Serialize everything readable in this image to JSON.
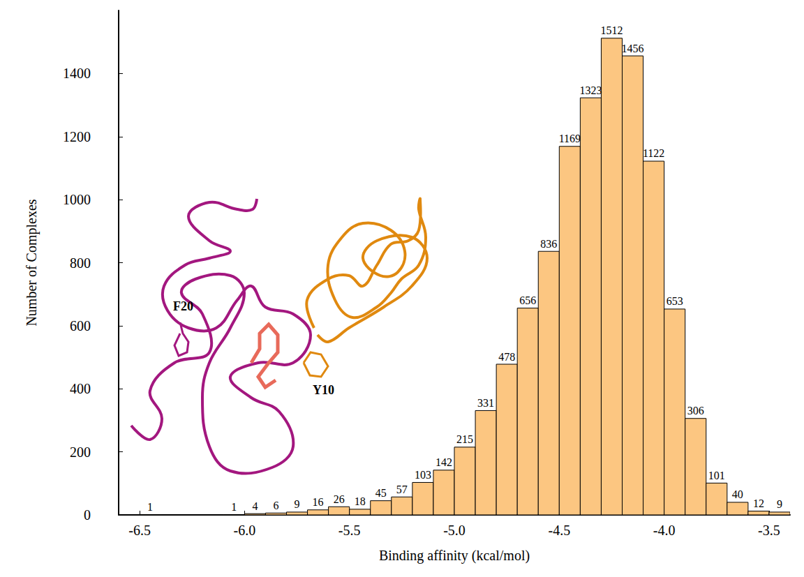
{
  "chart_data": {
    "type": "histogram",
    "x_label": "Binding affinity (kcal/mol)",
    "y_label": "Number of Complexes",
    "bins": [
      -6.5,
      -6.4,
      -6.3,
      -6.2,
      -6.1,
      -6.0,
      -5.9,
      -5.8,
      -5.7,
      -5.6,
      -5.5,
      -5.4,
      -5.3,
      -5.2,
      -5.1,
      -5.0,
      -4.9,
      -4.8,
      -4.7,
      -4.6,
      -4.5,
      -4.4,
      -4.3,
      -4.2,
      -4.1,
      -4.0,
      -3.9,
      -3.8,
      -3.7,
      -3.6,
      -3.5,
      -3.4
    ],
    "values": [
      1,
      null,
      null,
      null,
      1,
      4,
      6,
      9,
      16,
      26,
      18,
      45,
      57,
      103,
      142,
      215,
      331,
      478,
      656,
      836,
      1169,
      1323,
      1512,
      1456,
      1122,
      653,
      306,
      101,
      40,
      12,
      9
    ],
    "color": "#fcc681",
    "data_labels": true,
    "xlim": [
      -6.6,
      -3.4
    ],
    "xticks": [
      -6.5,
      {
        "value": -6,
        "label": "-6.0"
      },
      -5.5,
      {
        "value": -5,
        "label": "-5.0"
      },
      -4.5,
      {
        "value": -4,
        "label": "-4.0"
      },
      -3.5
    ],
    "ylim": [
      0,
      1600
    ],
    "yticks": [
      0,
      200,
      400,
      600,
      800,
      1000,
      1200,
      1400
    ],
    "grid": false,
    "annotations": [
      {
        "text": "F20"
      },
      {
        "text": "Y10"
      }
    ]
  }
}
